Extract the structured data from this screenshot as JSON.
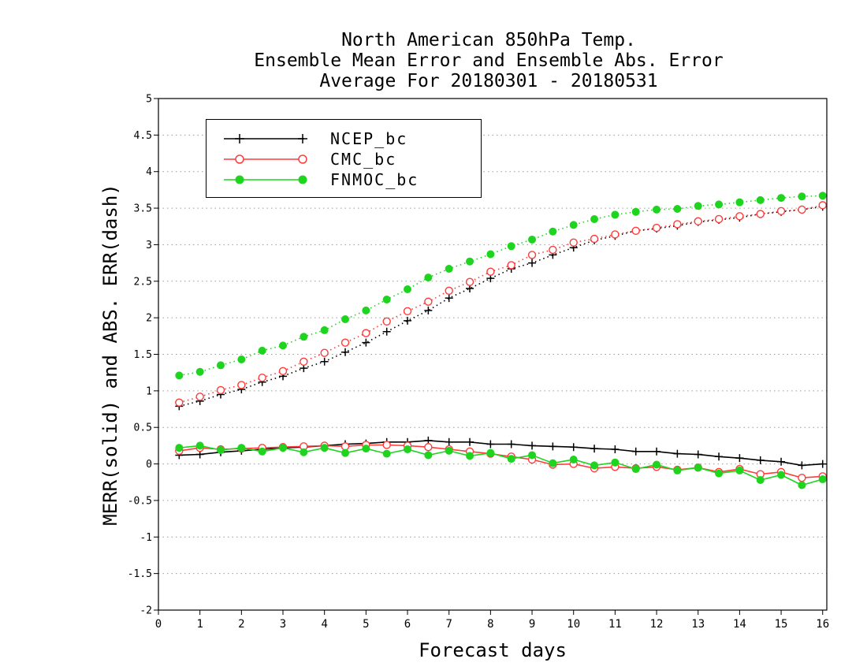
{
  "title_lines": [
    "North American 850hPa Temp.",
    "Ensemble Mean Error and Ensemble Abs. Error",
    "Average For 20180301 - 20180531"
  ],
  "colors": {
    "ncep": "#000000",
    "cmc": "#ff3b3b",
    "fnmoc": "#1fd41f",
    "grid": "#9a9a9a"
  },
  "chart_data": {
    "type": "line",
    "title": "North American 850hPa Temp. / Ensemble Mean Error and Ensemble Abs. Error / Average For 20180301 - 20180531",
    "xlabel": "Forecast days",
    "ylabel": "MERR(solid) and ABS. ERR(dash)",
    "xlim": [
      0,
      16.1
    ],
    "ylim": [
      -2,
      5
    ],
    "xticks": [
      "0",
      "1",
      "2",
      "3",
      "4",
      "5",
      "6",
      "7",
      "8",
      "9",
      "10",
      "11",
      "12",
      "13",
      "14",
      "15",
      "16"
    ],
    "yticks": [
      "-2",
      "-1.5",
      "-1",
      "-0.5",
      "0",
      "0.5",
      "1",
      "1.5",
      "2",
      "2.5",
      "3",
      "3.5",
      "4",
      "4.5",
      "5"
    ],
    "grid": "horizontal dotted",
    "legend_position": "top-left",
    "x": [
      0.5,
      1,
      1.5,
      2,
      2.5,
      3,
      3.5,
      4,
      4.5,
      5,
      5.5,
      6,
      6.5,
      7,
      7.5,
      8,
      8.5,
      9,
      9.5,
      10,
      10.5,
      11,
      11.5,
      12,
      12.5,
      13,
      13.5,
      14,
      14.5,
      15,
      15.5,
      16
    ],
    "series": [
      {
        "name": "NCEP_bc",
        "marker": "plus",
        "style": "solid",
        "values": [
          0.12,
          0.13,
          0.16,
          0.18,
          0.2,
          0.22,
          0.23,
          0.25,
          0.27,
          0.28,
          0.3,
          0.3,
          0.32,
          0.3,
          0.3,
          0.27,
          0.27,
          0.25,
          0.24,
          0.23,
          0.21,
          0.2,
          0.17,
          0.17,
          0.14,
          0.13,
          0.1,
          0.08,
          0.05,
          0.03,
          -0.02,
          0
        ]
      },
      {
        "name": "CMC_bc",
        "marker": "open-circle",
        "style": "solid",
        "values": [
          0.18,
          0.22,
          0.2,
          0.21,
          0.22,
          0.23,
          0.24,
          0.25,
          0.24,
          0.26,
          0.26,
          0.25,
          0.23,
          0.2,
          0.17,
          0.14,
          0.1,
          0.06,
          -0.01,
          0,
          -0.06,
          -0.04,
          -0.06,
          -0.04,
          -0.08,
          -0.05,
          -0.11,
          -0.07,
          -0.14,
          -0.11,
          -0.19,
          -0.17
        ]
      },
      {
        "name": "FNMOC_bc",
        "marker": "filled-circle",
        "style": "solid",
        "values": [
          0.22,
          0.25,
          0.19,
          0.22,
          0.17,
          0.22,
          0.16,
          0.22,
          0.15,
          0.21,
          0.14,
          0.2,
          0.12,
          0.18,
          0.11,
          0.15,
          0.07,
          0.12,
          0.01,
          0.06,
          -0.02,
          0.02,
          -0.07,
          -0.01,
          -0.09,
          -0.05,
          -0.13,
          -0.09,
          -0.22,
          -0.15,
          -0.29,
          -0.21
        ]
      },
      {
        "name": "NCEP_bc",
        "marker": "plus",
        "style": "dotted",
        "values": [
          0.79,
          0.86,
          0.95,
          1.02,
          1.12,
          1.2,
          1.31,
          1.4,
          1.53,
          1.66,
          1.81,
          1.96,
          2.1,
          2.27,
          2.4,
          2.54,
          2.67,
          2.75,
          2.86,
          2.96,
          3.06,
          3.12,
          3.19,
          3.22,
          3.26,
          3.31,
          3.34,
          3.37,
          3.42,
          3.45,
          3.48,
          3.52
        ]
      },
      {
        "name": "CMC_bc",
        "marker": "open-circle",
        "style": "dotted",
        "values": [
          0.84,
          0.92,
          1.01,
          1.08,
          1.18,
          1.27,
          1.4,
          1.52,
          1.66,
          1.79,
          1.95,
          2.09,
          2.22,
          2.37,
          2.49,
          2.63,
          2.72,
          2.86,
          2.93,
          3.03,
          3.08,
          3.14,
          3.19,
          3.23,
          3.28,
          3.32,
          3.35,
          3.39,
          3.42,
          3.46,
          3.48,
          3.54
        ]
      },
      {
        "name": "FNMOC_bc",
        "marker": "filled-circle",
        "style": "dotted",
        "values": [
          1.21,
          1.26,
          1.35,
          1.43,
          1.55,
          1.62,
          1.74,
          1.83,
          1.98,
          2.1,
          2.25,
          2.39,
          2.55,
          2.67,
          2.77,
          2.87,
          2.98,
          3.07,
          3.18,
          3.27,
          3.35,
          3.41,
          3.45,
          3.48,
          3.49,
          3.53,
          3.55,
          3.58,
          3.61,
          3.64,
          3.66,
          3.67
        ]
      }
    ]
  },
  "legend": [
    {
      "label": "NCEP_bc",
      "color_key": "ncep",
      "marker": "plus"
    },
    {
      "label": "CMC_bc",
      "color_key": "cmc",
      "marker": "open-circle"
    },
    {
      "label": "FNMOC_bc",
      "color_key": "fnmoc",
      "marker": "filled-circle"
    }
  ]
}
